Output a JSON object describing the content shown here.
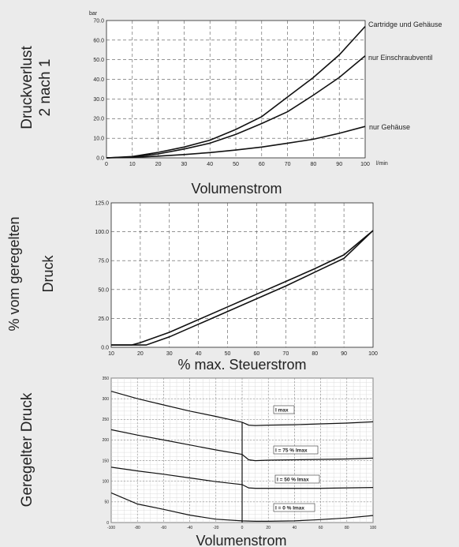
{
  "chart_data": [
    {
      "type": "line",
      "ylabel": [
        "Druckverlust",
        "2 nach 1"
      ],
      "y_unit": "bar",
      "xlabel": "Volumenstrom",
      "x_unit": "l/min",
      "xlim": [
        0,
        100
      ],
      "ylim": [
        0,
        70
      ],
      "x_ticks": [
        0,
        10,
        20,
        30,
        40,
        50,
        60,
        70,
        80,
        90,
        100
      ],
      "y_ticks": [
        0,
        10,
        20,
        30,
        40,
        50,
        60,
        70
      ],
      "y_tick_labels": [
        "0.0",
        "10.0",
        "20.0",
        "30.0",
        "40.0",
        "50.0",
        "60.0",
        "70.0"
      ],
      "grid": true,
      "series": [
        {
          "name": "Cartridge und Gehäuse",
          "x": [
            0,
            10,
            20,
            30,
            40,
            50,
            60,
            70,
            80,
            90,
            100
          ],
          "y": [
            0,
            0.7,
            2.8,
            5.5,
            9,
            14.5,
            21,
            31,
            41,
            52.5,
            67
          ]
        },
        {
          "name": "nur Einschraubventil",
          "x": [
            0,
            10,
            20,
            30,
            40,
            50,
            60,
            70,
            80,
            90,
            100
          ],
          "y": [
            0,
            0.5,
            2,
            4.5,
            7.5,
            12,
            17.5,
            23.5,
            32,
            41,
            52
          ]
        },
        {
          "name": "nur Gehäuse",
          "x": [
            0,
            10,
            20,
            30,
            40,
            50,
            60,
            70,
            80,
            90,
            100
          ],
          "y": [
            0,
            0.3,
            0.9,
            1.7,
            2.7,
            4,
            5.5,
            7.5,
            9.5,
            12.5,
            16
          ]
        }
      ]
    },
    {
      "type": "line",
      "ylabel": [
        "% vom geregelten",
        "Druck"
      ],
      "xlabel": "% max. Steuerstrom",
      "xlim": [
        10,
        100
      ],
      "ylim": [
        0,
        125
      ],
      "x_ticks": [
        10,
        20,
        30,
        40,
        50,
        60,
        70,
        80,
        90,
        100
      ],
      "y_ticks": [
        0,
        25,
        50,
        75,
        100,
        125
      ],
      "y_tick_labels": [
        "0.0",
        "25.0",
        "50.0",
        "75.0",
        "100.0",
        "125.0"
      ],
      "grid": true,
      "series": [
        {
          "x": [
            10,
            17,
            20,
            30,
            40,
            50,
            60,
            70,
            80,
            90,
            100
          ],
          "y": [
            2,
            2,
            4,
            13,
            24,
            35,
            46,
            57,
            68,
            80,
            101
          ]
        },
        {
          "x": [
            10,
            20,
            22,
            30,
            40,
            50,
            60,
            70,
            80,
            90,
            100
          ],
          "y": [
            2,
            2,
            2,
            9,
            20,
            31,
            42,
            53,
            65,
            77,
            101
          ]
        }
      ]
    },
    {
      "type": "line",
      "ylabel": "Geregelter Druck",
      "xlabel": "Volumenstrom",
      "xlim": [
        -100,
        100
      ],
      "ylim": [
        0,
        350
      ],
      "x_ticks": [
        -100,
        -80,
        -60,
        -40,
        -20,
        0,
        20,
        40,
        60,
        80,
        100
      ],
      "y_ticks": [
        0,
        50,
        100,
        150,
        200,
        250,
        300,
        350
      ],
      "grid": true,
      "series": [
        {
          "name": "I max",
          "x": [
            -100,
            -80,
            -60,
            -40,
            -20,
            0,
            5,
            10,
            20,
            40,
            60,
            80,
            100
          ],
          "y": [
            318,
            300,
            285,
            270,
            257,
            243,
            236,
            235,
            236,
            237,
            239,
            241,
            244
          ]
        },
        {
          "name": "I = 75 % Imax",
          "x": [
            -100,
            -80,
            -60,
            -40,
            -20,
            0,
            5,
            10,
            20,
            40,
            60,
            80,
            100
          ],
          "y": [
            225,
            212,
            200,
            188,
            176,
            165,
            152,
            150,
            151,
            152,
            153,
            154,
            156
          ]
        },
        {
          "name": "I = 50 % Imax",
          "x": [
            -100,
            -80,
            -60,
            -40,
            -20,
            0,
            5,
            10,
            20,
            40,
            60,
            80,
            100
          ],
          "y": [
            134,
            125,
            117,
            108,
            99,
            92,
            84,
            83,
            83,
            83,
            83,
            84,
            85
          ]
        },
        {
          "name": "I = 0 % Imax",
          "x": [
            -100,
            -80,
            -60,
            -40,
            -20,
            0,
            10,
            20,
            40,
            60,
            80,
            100
          ],
          "y": [
            72,
            45,
            32,
            18,
            8,
            4,
            3,
            3,
            4,
            7,
            11,
            17
          ]
        }
      ]
    }
  ]
}
